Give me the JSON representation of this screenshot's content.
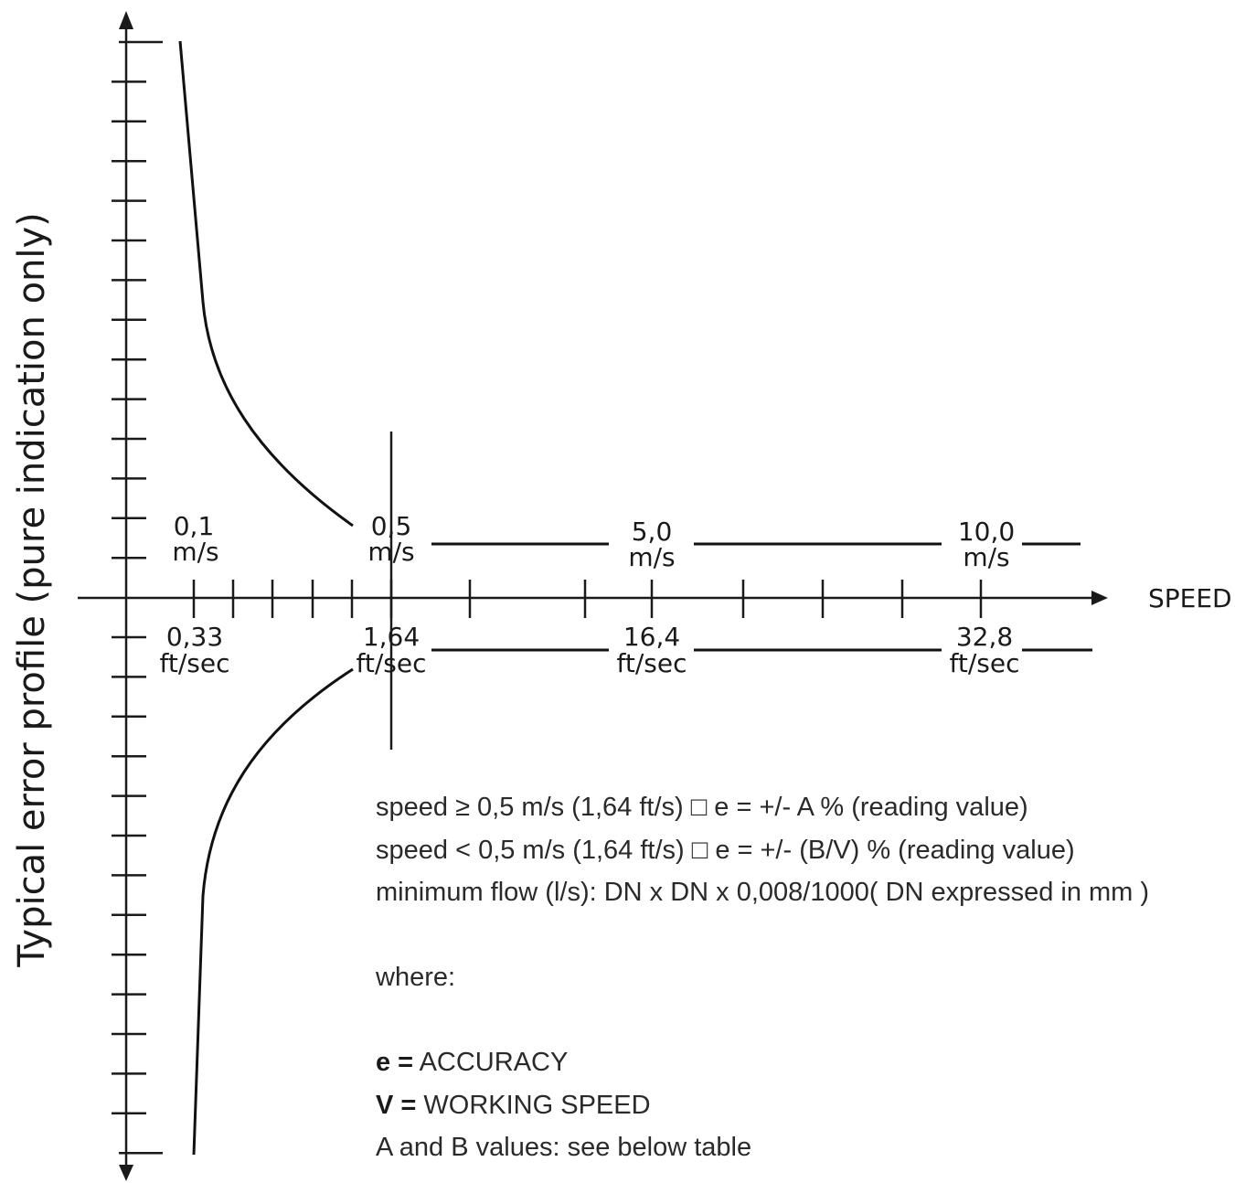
{
  "diagram": {
    "y_axis_label": "Typical error profile (pure indication only)",
    "x_axis_label": "SPEED",
    "speed_marks": [
      {
        "top": "0,1",
        "top_unit": "m/s",
        "bottom": "0,33",
        "bottom_unit": "ft/sec"
      },
      {
        "top": "0,5",
        "top_unit": "m/s",
        "bottom": "1,64",
        "bottom_unit": "ft/sec"
      },
      {
        "top": "5,0",
        "top_unit": "m/s",
        "bottom": "16,4",
        "bottom_unit": "ft/sec"
      },
      {
        "top": "10,0",
        "top_unit": "m/s",
        "bottom": "32,8",
        "bottom_unit": "ft/sec"
      }
    ]
  },
  "notes": {
    "line1": "speed ≥ 0,5 m/s (1,64 ft/s) □ e = +/- A % (reading value)",
    "line2": "speed < 0,5 m/s (1,64 ft/s) □ e = +/- (B/V) % (reading value)",
    "line3": "minimum flow (l/s): DN x DN x 0,008/1000( DN expressed in mm )",
    "where": "where:",
    "e_key": "e =",
    "e_value": " ACCURACY",
    "v_key": "V =",
    "v_value": " WORKING SPEED",
    "ab_note": "A and B values: see below table"
  }
}
